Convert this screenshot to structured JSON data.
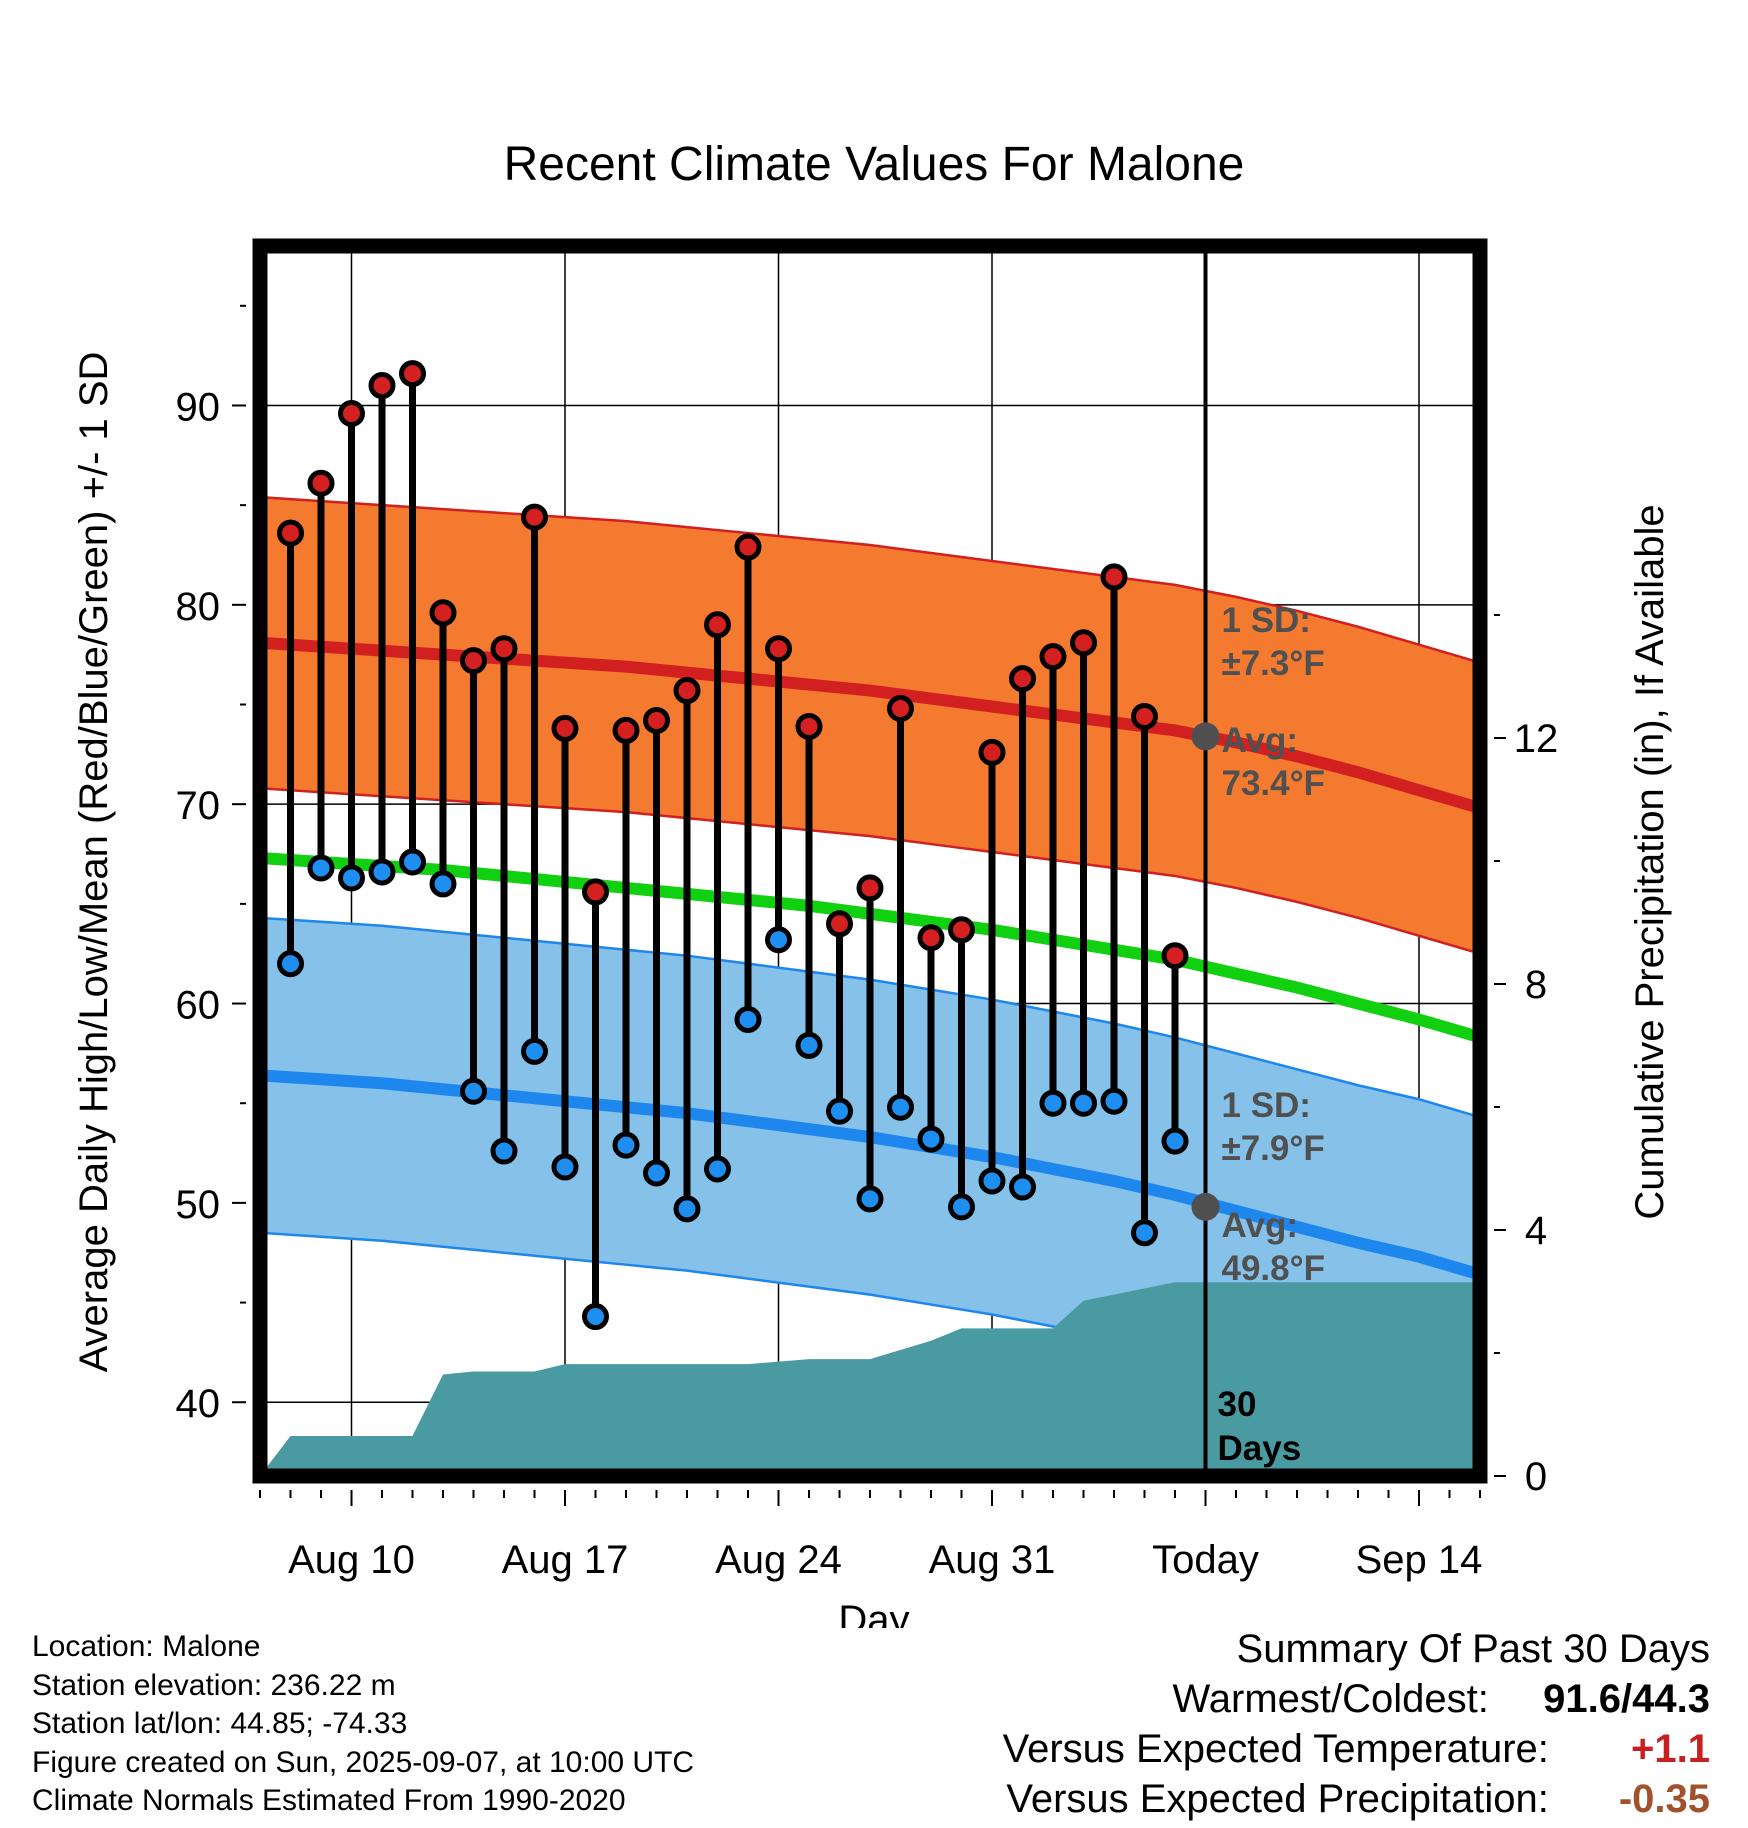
{
  "chart_data": {
    "type": "line",
    "title": "Recent Climate Values For Malone",
    "xlabel": "Day",
    "ylabel": "Average Daily High/Low/Mean (Red/Blue/Green) +/- 1 SD",
    "y2label": "Cumulative Precipitation (in), If Available",
    "xlim": [
      "2025-08-07",
      "2025-09-16"
    ],
    "ylim": [
      36.3,
      98
    ],
    "y2lim": [
      0,
      20
    ],
    "x_ticks": [
      {
        "date": "2025-08-10",
        "label": "Aug 10"
      },
      {
        "date": "2025-08-17",
        "label": "Aug 17"
      },
      {
        "date": "2025-08-24",
        "label": "Aug 24"
      },
      {
        "date": "2025-08-31",
        "label": "Aug 31"
      },
      {
        "date": "2025-09-07",
        "label": "Today"
      },
      {
        "date": "2025-09-14",
        "label": "Sep 14"
      }
    ],
    "y_ticks": [
      40,
      50,
      60,
      70,
      80,
      90
    ],
    "y2_ticks": [
      0,
      4,
      8,
      12
    ],
    "grid": true,
    "dates": [
      "2025-08-08",
      "2025-08-09",
      "2025-08-10",
      "2025-08-11",
      "2025-08-12",
      "2025-08-13",
      "2025-08-14",
      "2025-08-15",
      "2025-08-16",
      "2025-08-17",
      "2025-08-18",
      "2025-08-19",
      "2025-08-20",
      "2025-08-21",
      "2025-08-22",
      "2025-08-23",
      "2025-08-24",
      "2025-08-25",
      "2025-08-26",
      "2025-08-27",
      "2025-08-28",
      "2025-08-29",
      "2025-08-30",
      "2025-08-31",
      "2025-09-01",
      "2025-09-02",
      "2025-09-03",
      "2025-09-04",
      "2025-09-05",
      "2025-09-06"
    ],
    "daily_high": [
      83.6,
      86.1,
      89.6,
      91.0,
      91.6,
      79.6,
      77.2,
      77.8,
      84.4,
      73.8,
      65.6,
      73.7,
      74.2,
      75.7,
      79.0,
      82.9,
      77.8,
      73.9,
      64.0,
      65.8,
      74.8,
      63.3,
      63.7,
      72.6,
      76.3,
      77.4,
      78.1,
      81.4,
      74.4,
      62.4
    ],
    "daily_low": [
      62.0,
      66.8,
      66.3,
      66.6,
      67.1,
      66.0,
      55.6,
      52.6,
      57.6,
      51.8,
      44.3,
      52.9,
      51.5,
      49.7,
      51.7,
      59.2,
      63.2,
      57.9,
      54.6,
      50.2,
      54.8,
      53.2,
      49.8,
      51.1,
      50.8,
      55.0,
      55.0,
      55.1,
      48.5,
      53.1
    ],
    "normals": {
      "dates": [
        "2025-08-07",
        "2025-08-09",
        "2025-08-11",
        "2025-08-13",
        "2025-08-15",
        "2025-08-17",
        "2025-08-19",
        "2025-08-21",
        "2025-08-23",
        "2025-08-25",
        "2025-08-27",
        "2025-08-29",
        "2025-08-31",
        "2025-09-02",
        "2025-09-04",
        "2025-09-06",
        "2025-09-08",
        "2025-09-10",
        "2025-09-12",
        "2025-09-14",
        "2025-09-16"
      ],
      "mean_high": [
        78.1,
        77.9,
        77.7,
        77.5,
        77.3,
        77.1,
        76.9,
        76.6,
        76.3,
        76.0,
        75.7,
        75.3,
        74.9,
        74.5,
        74.1,
        73.7,
        73.1,
        72.4,
        71.6,
        70.7,
        69.8
      ],
      "high_sd": 7.3,
      "mean_low": [
        56.4,
        56.2,
        56.0,
        55.7,
        55.4,
        55.1,
        54.8,
        54.5,
        54.1,
        53.7,
        53.3,
        52.8,
        52.3,
        51.7,
        51.1,
        50.4,
        49.6,
        48.8,
        48.0,
        47.3,
        46.4
      ],
      "low_sd": 7.9,
      "mean_avg": [
        67.3,
        67.1,
        66.9,
        66.7,
        66.4,
        66.1,
        65.8,
        65.5,
        65.2,
        64.9,
        64.5,
        64.1,
        63.7,
        63.2,
        62.7,
        62.2,
        61.5,
        60.8,
        60.0,
        59.2,
        58.3
      ]
    },
    "precipitation": {
      "dates": [
        "2025-08-07",
        "2025-08-08",
        "2025-08-12",
        "2025-08-13",
        "2025-08-14",
        "2025-08-16",
        "2025-08-17",
        "2025-08-23",
        "2025-08-25",
        "2025-08-26",
        "2025-08-27",
        "2025-08-29",
        "2025-08-30",
        "2025-09-02",
        "2025-09-03",
        "2025-09-05",
        "2025-09-06",
        "2025-09-16"
      ],
      "cumulative_in": [
        0.0,
        0.65,
        0.65,
        1.65,
        1.7,
        1.7,
        1.82,
        1.82,
        1.9,
        1.9,
        1.9,
        2.2,
        2.4,
        2.4,
        2.85,
        3.05,
        3.15,
        3.15
      ]
    },
    "annotations": {
      "high_sd_label": "1 SD:",
      "high_sd_value": "±7.3°F",
      "high_avg_label": "Avg:",
      "high_avg_value": "73.4°F",
      "low_sd_label": "1 SD:",
      "low_sd_value": "±7.9°F",
      "low_avg_label": "Avg:",
      "low_avg_value": "49.8°F",
      "period_line1": "30",
      "period_line2": "Days"
    },
    "today_values": {
      "mean_high": 73.4,
      "mean_low": 49.8
    },
    "colors": {
      "high_band": "#f47a30",
      "high_line": "#d22020",
      "low_band": "#85c1e8",
      "low_line": "#1e87ee",
      "mean_line": "#10d010",
      "precip_fill": "#4a9aa2",
      "high_marker": "#d42020",
      "low_marker": "#1e8ff0",
      "annotation_text": "#505050"
    }
  },
  "footer": {
    "location": "Location: Malone",
    "elevation": "Station elevation: 236.22 m",
    "latlon": "Station lat/lon: 44.85; -74.33",
    "created": "Figure created on Sun, 2025-09-07, at 10:00 UTC",
    "normals": "Climate Normals Estimated From 1990-2020"
  },
  "summary": {
    "title": "Summary Of Past 30 Days",
    "warmest_coldest_label": "Warmest/Coldest:",
    "warmest_coldest_value": "91.6/44.3",
    "temp_label": "Versus Expected Temperature:",
    "temp_value": "+1.1",
    "temp_color": "#c82020",
    "precip_label": "Versus Expected Precipitation:",
    "precip_value": "-0.35",
    "precip_color": "#a0522d"
  }
}
